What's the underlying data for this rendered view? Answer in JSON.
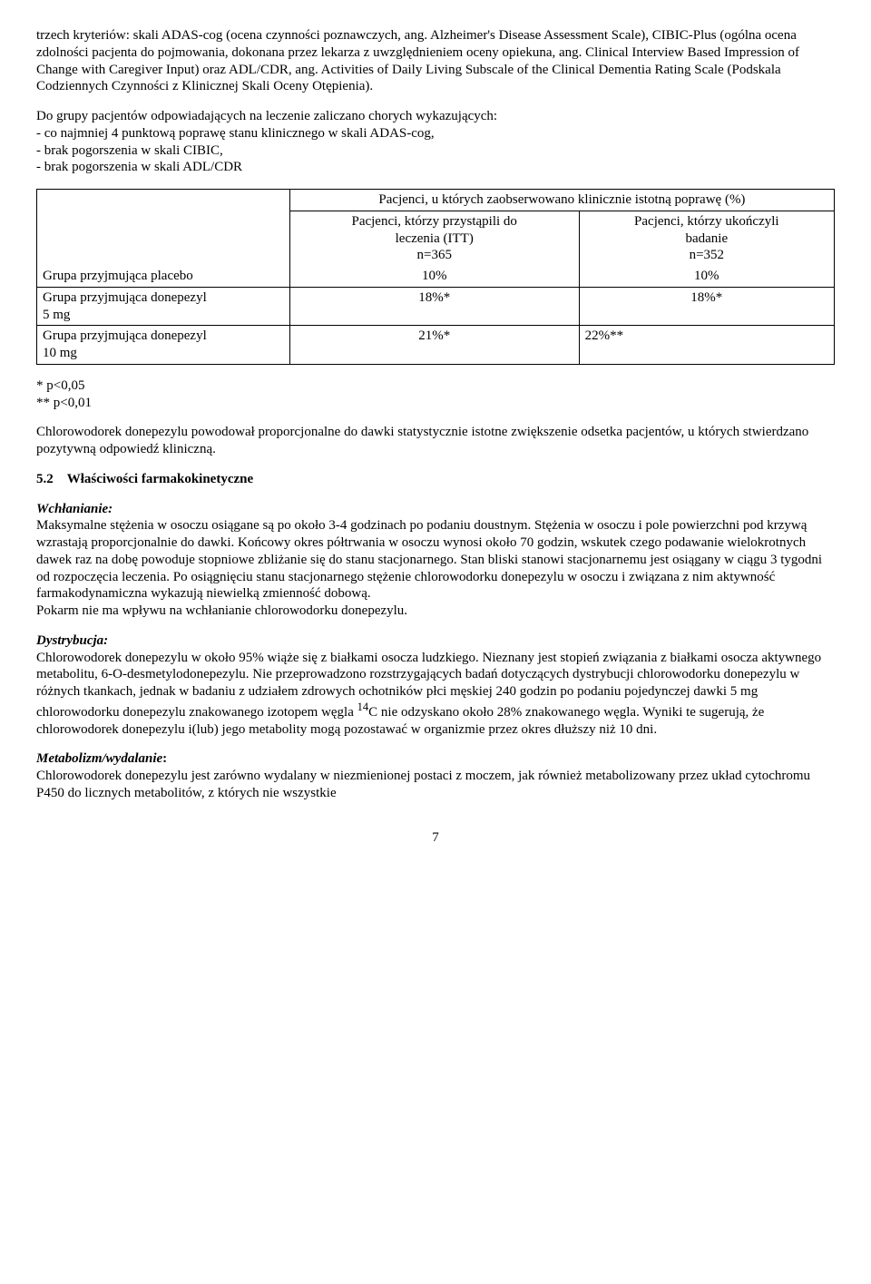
{
  "para1": "trzech kryteriów: skali ADAS-cog (ocena czynności poznawczych, ang. Alzheimer's Disease Assessment Scale), CIBIC-Plus (ogólna ocena zdolności pacjenta do pojmowania, dokonana przez lekarza z uwzględnieniem oceny opiekuna, ang. Clinical Interview Based Impression of Change with Caregiver Input) oraz ADL/CDR, ang. Activities of Daily Living Subscale of the Clinical Dementia Rating Scale (Podskala Codziennych Czynności z Klinicznej Skali Oceny Otępienia).",
  "para2_line1": "Do grupy pacjentów odpowiadających na leczenie zaliczano chorych wykazujących:",
  "para2_line2": "- co najmniej 4 punktową poprawę stanu klinicznego w skali ADAS-cog,",
  "para2_line3": "- brak pogorszenia w skali CIBIC,",
  "para2_line4": "- brak pogorszenia w skali ADL/CDR",
  "table": {
    "header_span": "Pacjenci, u których zaobserwowano klinicznie istotną poprawę (%)",
    "col2_l1": "Pacjenci, którzy przystąpili do",
    "col2_l2": "leczenia (ITT)",
    "col2_l3": "n=365",
    "col3_l1": "Pacjenci, którzy ukończyli",
    "col3_l2": "badanie",
    "col3_l3": "n=352",
    "r1_label": "Grupa przyjmująca placebo",
    "r1_c2": "10%",
    "r1_c3": "10%",
    "r2_label_l1": "Grupa przyjmująca donepezyl",
    "r2_label_l2": "5 mg",
    "r2_c2": "18%*",
    "r2_c3": "18%*",
    "r3_label_l1": "Grupa przyjmująca donepezyl",
    "r3_label_l2": "10 mg",
    "r3_c2": "21%*",
    "r3_c3": "22%**"
  },
  "footnote1": "* p<0,05",
  "footnote2": "** p<0,01",
  "para3": "Chlorowodorek donepezylu powodował proporcjonalne do dawki statystycznie istotne zwiększenie odsetka pacjentów, u których stwierdzano pozytywną odpowiedź kliniczną.",
  "section52_num": "5.2",
  "section52_title": "Właściwości farmakokinetyczne",
  "wchlanianie_label": "Wchłanianie:",
  "wchlanianie_body": "Maksymalne stężenia w osoczu osiągane są po około 3-4 godzinach po podaniu doustnym. Stężenia w osoczu i pole powierzchni pod krzywą wzrastają proporcjonalnie do dawki. Końcowy okres półtrwania w osoczu wynosi około 70 godzin, wskutek czego podawanie wielokrotnych dawek raz na dobę powoduje stopniowe zbliżanie się do stanu stacjonarnego. Stan bliski stanowi stacjonarnemu jest osiągany w ciągu 3 tygodni od rozpoczęcia leczenia. Po osiągnięciu stanu stacjonarnego stężenie chlorowodorku donepezylu w osoczu i związana z nim aktywność farmakodynamiczna wykazują niewielką zmienność dobową.",
  "wchlanianie_line2": "Pokarm nie ma wpływu na wchłanianie chlorowodorku donepezylu.",
  "dystrybucja_label": "Dystrybucja:",
  "dystrybucja_pre": "Chlorowodorek donepezylu w około 95% wiąże się z białkami osocza ludzkiego. Nieznany jest stopień związania z białkami osocza aktywnego metabolitu, 6-O-desmetylodonepezylu. Nie przeprowadzono rozstrzygających badań dotyczących dystrybucji chlorowodorku donepezylu w różnych tkankach, jednak w badaniu z udziałem zdrowych ochotników płci męskiej 240 godzin po podaniu pojedynczej dawki 5 mg chlorowodorku donepezylu znakowanego izotopem węgla ",
  "dystrybucja_sup": "14",
  "dystrybucja_post": "C nie odzyskano około 28% znakowanego węgla. Wyniki te sugerują, że chlorowodorek donepezylu i(lub) jego metabolity mogą pozostawać w organizmie przez okres dłuższy niż 10 dni.",
  "metabolizm_label": "Metabolizm/wydalanie",
  "metabolizm_body": "Chlorowodorek donepezylu jest zarówno wydalany w niezmienionej postaci z moczem, jak również metabolizowany przez układ cytochromu P450 do licznych metabolitów, z których nie wszystkie",
  "page_number": "7"
}
